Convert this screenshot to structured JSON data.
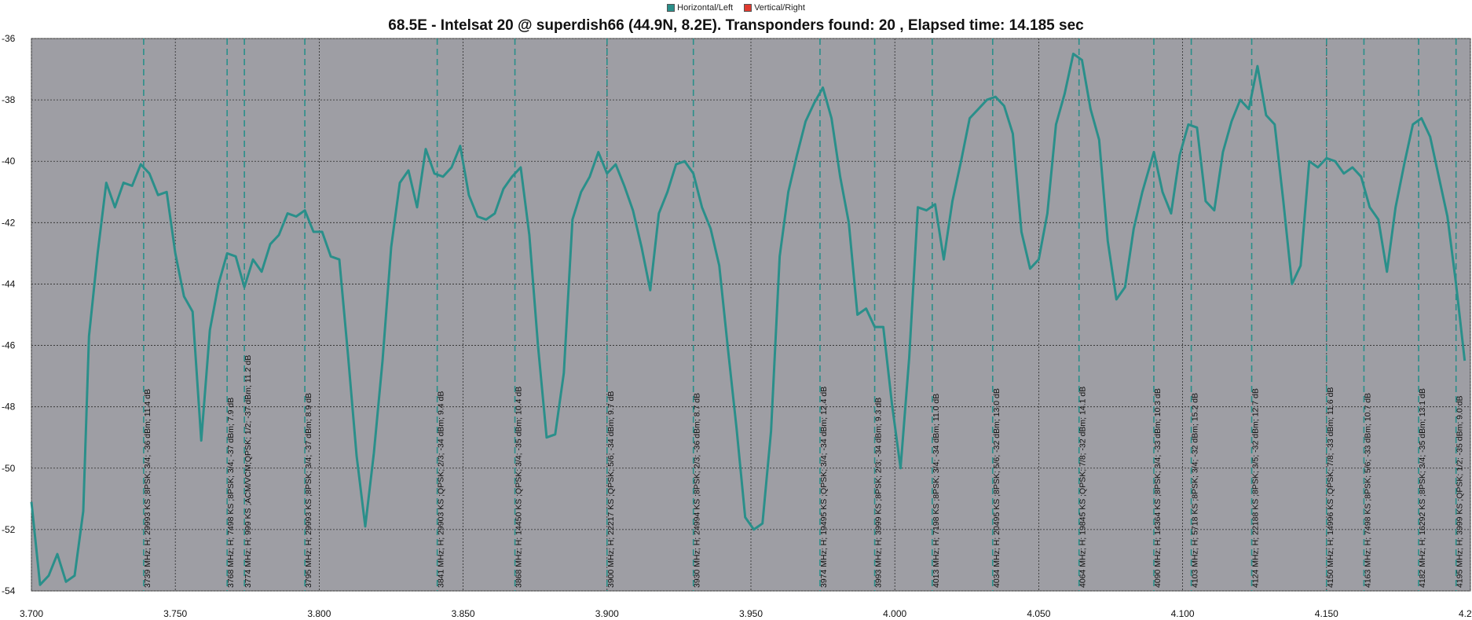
{
  "legend": [
    {
      "name": "Horizontal/Left",
      "color": "#2a8f8a"
    },
    {
      "name": "Vertical/Right",
      "color": "#e03a2f"
    }
  ],
  "chart_data": {
    "type": "line",
    "title": "68.5E - Intelsat 20 @ superdish66 (44.9N, 8.2E). Transponders found: 20 , Elapsed time: 14.185 sec",
    "xlabel": "",
    "ylabel": "",
    "xlim": [
      3.7,
      4.2
    ],
    "ylim": [
      -54,
      -36
    ],
    "grid": true,
    "x_ticks": [
      "3.700",
      "3.750",
      "3.800",
      "3.850",
      "3.900",
      "3.950",
      "4.000",
      "4.050",
      "4.100",
      "4.150",
      "4.200"
    ],
    "y_ticks": [
      "-36",
      "-38",
      "-40",
      "-42",
      "-44",
      "-46",
      "-48",
      "-50",
      "-52",
      "-54"
    ],
    "series": [
      {
        "name": "Horizontal/Left",
        "color": "#2a8f8a",
        "points": [
          [
            3.7,
            -51.1
          ],
          [
            3.703,
            -53.8
          ],
          [
            3.706,
            -53.5
          ],
          [
            3.709,
            -52.8
          ],
          [
            3.712,
            -53.7
          ],
          [
            3.715,
            -53.5
          ],
          [
            3.718,
            -51.4
          ],
          [
            3.72,
            -45.7
          ],
          [
            3.723,
            -43.0
          ],
          [
            3.726,
            -40.7
          ],
          [
            3.729,
            -41.5
          ],
          [
            3.732,
            -40.7
          ],
          [
            3.735,
            -40.8
          ],
          [
            3.738,
            -40.1
          ],
          [
            3.741,
            -40.4
          ],
          [
            3.744,
            -41.1
          ],
          [
            3.747,
            -41.0
          ],
          [
            3.75,
            -43.0
          ],
          [
            3.753,
            -44.4
          ],
          [
            3.756,
            -44.9
          ],
          [
            3.759,
            -49.1
          ],
          [
            3.762,
            -45.5
          ],
          [
            3.765,
            -44.0
          ],
          [
            3.768,
            -43.0
          ],
          [
            3.771,
            -43.1
          ],
          [
            3.774,
            -44.1
          ],
          [
            3.777,
            -43.2
          ],
          [
            3.78,
            -43.6
          ],
          [
            3.783,
            -42.7
          ],
          [
            3.786,
            -42.4
          ],
          [
            3.789,
            -41.7
          ],
          [
            3.792,
            -41.8
          ],
          [
            3.795,
            -41.6
          ],
          [
            3.798,
            -42.3
          ],
          [
            3.801,
            -42.3
          ],
          [
            3.804,
            -43.1
          ],
          [
            3.807,
            -43.2
          ],
          [
            3.81,
            -46.3
          ],
          [
            3.813,
            -49.6
          ],
          [
            3.816,
            -51.9
          ],
          [
            3.819,
            -49.5
          ],
          [
            3.822,
            -46.5
          ],
          [
            3.825,
            -42.8
          ],
          [
            3.828,
            -40.7
          ],
          [
            3.831,
            -40.3
          ],
          [
            3.834,
            -41.5
          ],
          [
            3.837,
            -39.6
          ],
          [
            3.84,
            -40.4
          ],
          [
            3.843,
            -40.5
          ],
          [
            3.846,
            -40.2
          ],
          [
            3.849,
            -39.5
          ],
          [
            3.852,
            -41.1
          ],
          [
            3.855,
            -41.8
          ],
          [
            3.858,
            -41.9
          ],
          [
            3.861,
            -41.7
          ],
          [
            3.864,
            -40.9
          ],
          [
            3.867,
            -40.5
          ],
          [
            3.87,
            -40.2
          ],
          [
            3.873,
            -42.4
          ],
          [
            3.876,
            -46.0
          ],
          [
            3.879,
            -49.0
          ],
          [
            3.882,
            -48.9
          ],
          [
            3.885,
            -46.9
          ],
          [
            3.888,
            -41.9
          ],
          [
            3.891,
            -41.0
          ],
          [
            3.894,
            -40.5
          ],
          [
            3.897,
            -39.7
          ],
          [
            3.9,
            -40.4
          ],
          [
            3.903,
            -40.1
          ],
          [
            3.906,
            -40.8
          ],
          [
            3.909,
            -41.6
          ],
          [
            3.912,
            -42.8
          ],
          [
            3.915,
            -44.2
          ],
          [
            3.918,
            -41.7
          ],
          [
            3.921,
            -41.0
          ],
          [
            3.924,
            -40.1
          ],
          [
            3.927,
            -40.0
          ],
          [
            3.93,
            -40.4
          ],
          [
            3.933,
            -41.5
          ],
          [
            3.936,
            -42.2
          ],
          [
            3.939,
            -43.4
          ],
          [
            3.942,
            -46.1
          ],
          [
            3.945,
            -48.7
          ],
          [
            3.948,
            -51.6
          ],
          [
            3.951,
            -52.0
          ],
          [
            3.954,
            -51.8
          ],
          [
            3.957,
            -48.8
          ],
          [
            3.96,
            -43.1
          ],
          [
            3.963,
            -41.0
          ],
          [
            3.966,
            -39.8
          ],
          [
            3.969,
            -38.7
          ],
          [
            3.972,
            -38.1
          ],
          [
            3.975,
            -37.6
          ],
          [
            3.978,
            -38.6
          ],
          [
            3.981,
            -40.5
          ],
          [
            3.984,
            -42.0
          ],
          [
            3.987,
            -45.0
          ],
          [
            3.99,
            -44.8
          ],
          [
            3.993,
            -45.4
          ],
          [
            3.996,
            -45.4
          ],
          [
            3.999,
            -47.9
          ],
          [
            4.002,
            -50.0
          ],
          [
            4.005,
            -46.4
          ],
          [
            4.008,
            -41.5
          ],
          [
            4.011,
            -41.6
          ],
          [
            4.014,
            -41.4
          ],
          [
            4.017,
            -43.2
          ],
          [
            4.02,
            -41.3
          ],
          [
            4.023,
            -40.0
          ],
          [
            4.026,
            -38.6
          ],
          [
            4.029,
            -38.3
          ],
          [
            4.032,
            -38.0
          ],
          [
            4.035,
            -37.9
          ],
          [
            4.038,
            -38.2
          ],
          [
            4.041,
            -39.1
          ],
          [
            4.044,
            -42.3
          ],
          [
            4.047,
            -43.5
          ],
          [
            4.05,
            -43.2
          ],
          [
            4.053,
            -41.7
          ],
          [
            4.056,
            -38.8
          ],
          [
            4.059,
            -37.8
          ],
          [
            4.062,
            -36.5
          ],
          [
            4.065,
            -36.7
          ],
          [
            4.068,
            -38.3
          ],
          [
            4.071,
            -39.3
          ],
          [
            4.074,
            -42.6
          ],
          [
            4.077,
            -44.5
          ],
          [
            4.08,
            -44.1
          ],
          [
            4.083,
            -42.2
          ],
          [
            4.086,
            -41.0
          ],
          [
            4.09,
            -39.7
          ],
          [
            4.093,
            -41.0
          ],
          [
            4.096,
            -41.7
          ],
          [
            4.099,
            -39.8
          ],
          [
            4.102,
            -38.8
          ],
          [
            4.105,
            -38.9
          ],
          [
            4.108,
            -41.3
          ],
          [
            4.111,
            -41.6
          ],
          [
            4.114,
            -39.7
          ],
          [
            4.117,
            -38.7
          ],
          [
            4.12,
            -38.0
          ],
          [
            4.123,
            -38.3
          ],
          [
            4.126,
            -36.9
          ],
          [
            4.129,
            -38.5
          ],
          [
            4.132,
            -38.8
          ],
          [
            4.135,
            -41.3
          ],
          [
            4.138,
            -44.0
          ],
          [
            4.141,
            -43.4
          ],
          [
            4.144,
            -40.0
          ],
          [
            4.147,
            -40.2
          ],
          [
            4.15,
            -39.9
          ],
          [
            4.153,
            -40.0
          ],
          [
            4.156,
            -40.4
          ],
          [
            4.159,
            -40.2
          ],
          [
            4.162,
            -40.5
          ],
          [
            4.165,
            -41.5
          ],
          [
            4.168,
            -41.9
          ],
          [
            4.171,
            -43.6
          ],
          [
            4.174,
            -41.5
          ],
          [
            4.177,
            -40.1
          ],
          [
            4.18,
            -38.8
          ],
          [
            4.183,
            -38.6
          ],
          [
            4.186,
            -39.2
          ],
          [
            4.189,
            -40.5
          ],
          [
            4.192,
            -41.8
          ],
          [
            4.195,
            -44.0
          ],
          [
            4.198,
            -46.5
          ]
        ]
      }
    ],
    "transponders": [
      {
        "x": 3.739,
        "label": "3739 MHz; H; 29993 KS ;8PSK; 3/4; -36 dBm; 11.4 dB"
      },
      {
        "x": 3.768,
        "label": "3768 MHz; H; 7498 KS ;8PSK; 3/4; -37 dBm; 7.9 dB"
      },
      {
        "x": 3.774,
        "label": "3774 MHz; H; 999 KS ;ACM/VCM;QPSK; 1/2; -37 dBm; 11.2 dB"
      },
      {
        "x": 3.795,
        "label": "3795 MHz; H; 29993 KS ;8PSK; 3/4; -37 dBm; 8.9 dB"
      },
      {
        "x": 3.841,
        "label": "3841 MHz; H; 29903 KS ;QPSK; 2/3; -34 dBm; 9.4 dB"
      },
      {
        "x": 3.868,
        "label": "3868 MHz; H; 14450 KS ;QPSK; 3/4; -35 dBm; 10.4 dB"
      },
      {
        "x": 3.9,
        "label": "3900 MHz; H; 22217 KS ;QPSK; 5/6; -34 dBm; 9.7 dB"
      },
      {
        "x": 3.93,
        "label": "3930 MHz; H; 24994 KS ;8PSK; 2/3; -36 dBm; 8.7 dB"
      },
      {
        "x": 3.974,
        "label": "3974 MHz; H; 19495 KS ;QPSK; 3/4; -34 dBm; 12.4 dB"
      },
      {
        "x": 3.993,
        "label": "3993 MHz; H; 3999 KS ;8PSK; 2/3; -34 dBm; 9.3 dB"
      },
      {
        "x": 4.013,
        "label": "4013 MHz; H; 7198 KS ;8PSK; 3/4; -34 dBm; 11.0 dB"
      },
      {
        "x": 4.034,
        "label": "4034 MHz; H; 20495 KS ;8PSK; 5/6; -32 dBm; 13.0 dB"
      },
      {
        "x": 4.064,
        "label": "4064 MHz; H; 19845 KS ;QPSK; 7/8; -32 dBm; 14.1 dB"
      },
      {
        "x": 4.09,
        "label": "4090 MHz; H; 14364 KS ;8PSK; 3/4; -33 dBm; 10.3 dB"
      },
      {
        "x": 4.103,
        "label": "4103 MHz; H; 5718 KS ;8PSK; 3/4; -32 dBm; 15.2 dB"
      },
      {
        "x": 4.124,
        "label": "4124 MHz; H; 22188 KS ;8PSK; 3/5; -32 dBm; 12.7 dB"
      },
      {
        "x": 4.15,
        "label": "4150 MHz; H; 14996 KS ;QPSK; 7/8; -33 dBm; 11.6 dB"
      },
      {
        "x": 4.163,
        "label": "4163 MHz; H; 7498 KS ;8PSK; 5/6; -33 dBm; 10.7 dB"
      },
      {
        "x": 4.182,
        "label": "4182 MHz; H; 16292 KS ;8PSK; 3/4; -35 dBm; 13.1 dB"
      },
      {
        "x": 4.195,
        "label": "4195 MHz; H; 3999 KS ;QPSK; 1/2; -35 dBm; 9.0 dB"
      }
    ]
  }
}
